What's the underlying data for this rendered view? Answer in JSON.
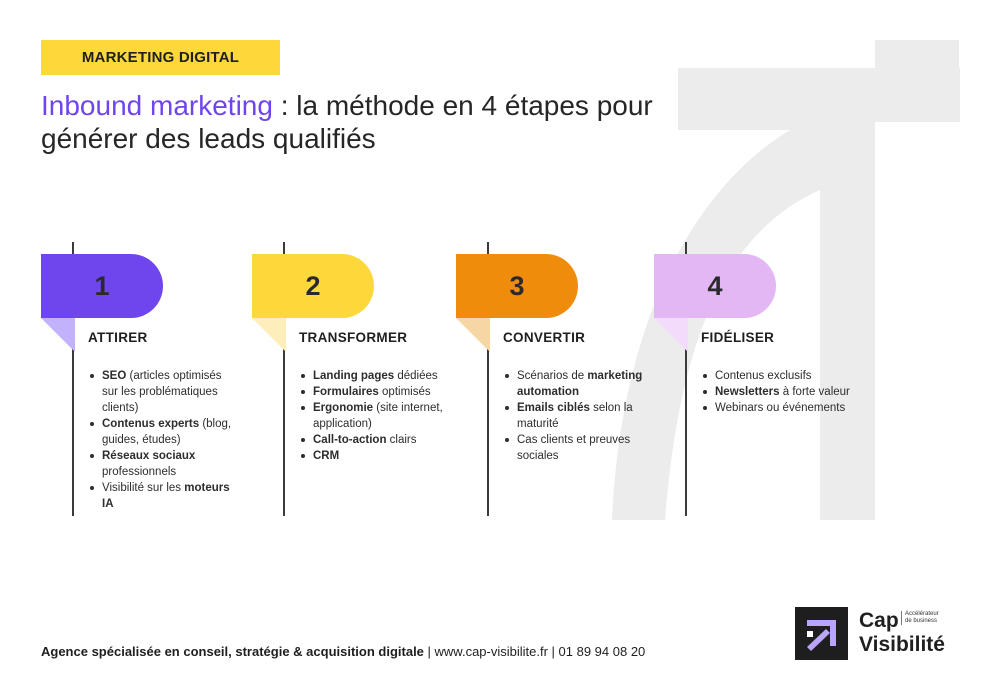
{
  "tag": "MARKETING DIGITAL",
  "title": {
    "accent": "Inbound marketing",
    "rest_line1": " : la méthode en 4 étapes pour",
    "line2": "générer des leads qualifiés"
  },
  "colors": {
    "purple": "#6f45ee",
    "yellow": "#fdd83a",
    "orange": "#f08c0c",
    "lilac": "#e3b6f4",
    "dark": "#1e1e1e"
  },
  "steps": [
    {
      "number": "1",
      "heading": "ATTIRER",
      "items": [
        {
          "bold": "SEO",
          "text": " (articles optimisés sur les problématiques clients)"
        },
        {
          "bold": "Contenus experts",
          "text": " (blog, guides, études)"
        },
        {
          "bold": "Réseaux sociaux",
          "text": " professionnels"
        },
        {
          "prefix": "Visibilité sur les ",
          "bold": "moteurs IA",
          "text": ""
        }
      ]
    },
    {
      "number": "2",
      "heading": "TRANSFORMER",
      "items": [
        {
          "bold": "Landing pages",
          "text": " dédiées"
        },
        {
          "bold": "Formulaires",
          "text": " optimisés"
        },
        {
          "bold": "Ergonomie",
          "text": " (site internet, application)"
        },
        {
          "bold": "Call-to-action",
          "text": " clairs"
        },
        {
          "bold": "CRM",
          "text": ""
        }
      ]
    },
    {
      "number": "3",
      "heading": "CONVERTIR",
      "items": [
        {
          "prefix": "Scénarios de ",
          "bold": "marketing automation",
          "text": ""
        },
        {
          "bold": "Emails ciblés",
          "text": " selon la maturité"
        },
        {
          "prefix": "Cas clients et preuves sociales",
          "bold": "",
          "text": ""
        }
      ]
    },
    {
      "number": "4",
      "heading": "FIDÉLISER",
      "items": [
        {
          "prefix": "Contenus exclusifs",
          "bold": "",
          "text": ""
        },
        {
          "bold": "Newsletters",
          "text": " à forte valeur"
        },
        {
          "prefix": "Webinars ou événements",
          "bold": "",
          "text": ""
        }
      ]
    }
  ],
  "footer": {
    "bold": "Agence spécialisée en conseil, stratégie & acquisition digitale",
    "rest": " | www.cap-visibilite.fr | 01 89 94 08 20"
  },
  "logo": {
    "name_line1": "Cap",
    "name_line2": "Visibilité",
    "baseline_line1": "Accélérateur",
    "baseline_line2": "de business"
  }
}
